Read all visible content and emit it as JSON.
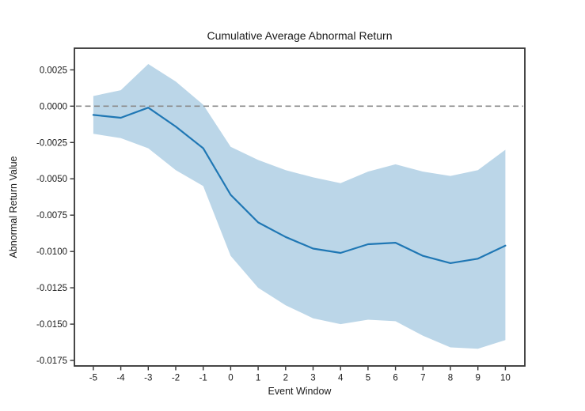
{
  "figure": {
    "title": "Cumulative Average Abnormal Return",
    "xlabel": "Event Window",
    "ylabel": "Abnormal Return Value"
  },
  "chart_data": {
    "type": "line",
    "title": "Cumulative Average Abnormal Return",
    "xlabel": "Event Window",
    "ylabel": "Abnormal Return Value",
    "x": [
      -5,
      -4,
      -3,
      -2,
      -1,
      0,
      1,
      2,
      3,
      4,
      5,
      6,
      7,
      8,
      9,
      10
    ],
    "series": [
      {
        "name": "cumulative-average-abnormal-return",
        "values": [
          -0.0006,
          -0.0008,
          -0.0001,
          -0.0014,
          -0.0029,
          -0.0061,
          -0.008,
          -0.009,
          -0.0098,
          -0.0101,
          -0.0095,
          -0.0094,
          -0.0103,
          -0.0108,
          -0.0105,
          -0.0096
        ]
      }
    ],
    "band": {
      "upper": [
        0.0007,
        0.0011,
        0.0029,
        0.0017,
        0.0001,
        -0.0028,
        -0.0037,
        -0.0044,
        -0.0049,
        -0.0053,
        -0.0045,
        -0.004,
        -0.0045,
        -0.0048,
        -0.0044,
        -0.003
      ],
      "lower": [
        -0.0019,
        -0.0022,
        -0.0029,
        -0.0044,
        -0.0055,
        -0.0103,
        -0.0125,
        -0.0137,
        -0.0146,
        -0.015,
        -0.0147,
        -0.0148,
        -0.0158,
        -0.0166,
        -0.0167,
        -0.0161
      ]
    },
    "zero_line": {
      "y": 0,
      "style": "dashed"
    },
    "xtick_values": [
      -5,
      -4,
      -3,
      -2,
      -1,
      0,
      1,
      2,
      3,
      4,
      5,
      6,
      7,
      8,
      9,
      10
    ],
    "xtick_labels": [
      "-5",
      "-4",
      "-3",
      "-2",
      "-1",
      "0",
      "1",
      "2",
      "3",
      "4",
      "5",
      "6",
      "7",
      "8",
      "9",
      "10"
    ],
    "ytick_values": [
      0.0025,
      0.0,
      -0.0025,
      -0.005,
      -0.0075,
      -0.01,
      -0.0125,
      -0.015,
      -0.0175
    ],
    "ytick_labels": [
      "0.0025",
      "0.0000",
      "-0.0025",
      "-0.0050",
      "-0.0075",
      "-0.0100",
      "-0.0125",
      "-0.0150",
      "-0.0175"
    ],
    "xlim": [
      -5.69,
      10.71
    ],
    "ylim": [
      -0.01788,
      0.00399
    ],
    "grid": false,
    "legend": "none",
    "colors": {
      "line": "#1f77b4",
      "band": "#1f77b4",
      "band_opacity": 0.3,
      "zero_line": "#8a8a8a",
      "axis": "#333333",
      "text": "#1a1a1a"
    }
  }
}
